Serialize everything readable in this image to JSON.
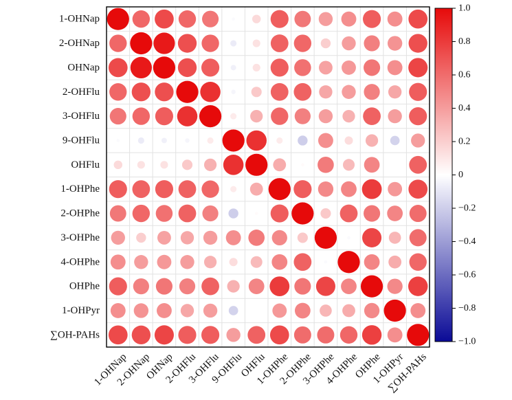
{
  "chart_data": {
    "type": "heatmap",
    "title": "",
    "xlabel": "",
    "ylabel": "",
    "variables": [
      "1-OHNap",
      "2-OHNap",
      "OHNap",
      "2-OHFlu",
      "3-OHFlu",
      "9-OHFlu",
      "OHFlu",
      "1-OHPhe",
      "2-OHPhe",
      "3-OHPhe",
      "4-OHPhe",
      "OHPhe",
      "1-OHPyr",
      "∑OH-PAHs"
    ],
    "matrix": [
      [
        1.0,
        0.62,
        0.74,
        0.62,
        0.56,
        -0.02,
        0.15,
        0.66,
        0.55,
        0.4,
        0.46,
        0.66,
        0.46,
        0.74
      ],
      [
        0.62,
        1.0,
        0.94,
        0.72,
        0.62,
        -0.08,
        0.12,
        0.64,
        0.62,
        0.2,
        0.4,
        0.52,
        0.44,
        0.72
      ],
      [
        0.74,
        0.94,
        1.0,
        0.72,
        0.66,
        -0.06,
        0.12,
        0.66,
        0.58,
        0.38,
        0.42,
        0.56,
        0.46,
        0.76
      ],
      [
        0.62,
        0.72,
        0.72,
        1.0,
        0.84,
        -0.04,
        0.22,
        0.64,
        0.64,
        0.36,
        0.4,
        0.52,
        0.36,
        0.66
      ],
      [
        0.56,
        0.62,
        0.66,
        0.84,
        1.0,
        0.08,
        0.32,
        0.62,
        0.52,
        0.4,
        0.32,
        0.64,
        0.4,
        0.66
      ],
      [
        -0.02,
        -0.08,
        -0.06,
        -0.04,
        0.08,
        1.0,
        0.84,
        0.08,
        -0.2,
        0.46,
        0.14,
        0.32,
        -0.18,
        0.4
      ],
      [
        0.15,
        0.12,
        0.12,
        0.22,
        0.32,
        0.84,
        1.0,
        0.34,
        0.02,
        0.54,
        0.28,
        0.5,
        0.0,
        0.64
      ],
      [
        0.66,
        0.64,
        0.66,
        0.64,
        0.62,
        0.08,
        0.34,
        1.0,
        0.66,
        0.48,
        0.5,
        0.8,
        0.42,
        0.74
      ],
      [
        0.55,
        0.62,
        0.58,
        0.64,
        0.52,
        -0.2,
        0.02,
        0.66,
        1.0,
        0.22,
        0.64,
        0.56,
        0.5,
        0.6
      ],
      [
        0.4,
        0.2,
        0.38,
        0.36,
        0.4,
        0.46,
        0.54,
        0.48,
        0.22,
        1.0,
        -0.02,
        0.76,
        0.3,
        0.6
      ],
      [
        0.46,
        0.4,
        0.42,
        0.4,
        0.32,
        0.14,
        0.28,
        0.5,
        0.64,
        -0.02,
        1.0,
        0.5,
        0.34,
        0.62
      ],
      [
        0.66,
        0.52,
        0.56,
        0.52,
        0.64,
        0.32,
        0.5,
        0.8,
        0.56,
        0.76,
        0.5,
        1.0,
        0.48,
        0.78
      ],
      [
        0.46,
        0.44,
        0.46,
        0.36,
        0.4,
        -0.18,
        0.0,
        0.42,
        0.5,
        0.3,
        0.34,
        0.48,
        1.0,
        0.46
      ],
      [
        0.74,
        0.72,
        0.76,
        0.66,
        0.66,
        0.4,
        0.64,
        0.74,
        0.6,
        0.6,
        0.62,
        0.78,
        0.46,
        1.0
      ]
    ],
    "color_range": [
      -1.0,
      1.0
    ],
    "colorbar_ticks": [
      1.0,
      0.8,
      0.6,
      0.4,
      0.2,
      0,
      -0.2,
      -0.4,
      -0.6,
      -0.8,
      -1.0
    ],
    "colorbar_tick_labels": [
      "1.0",
      "0.8",
      "0.6",
      "0.4",
      "0.2",
      "0",
      "−0.2",
      "−0.4",
      "−0.6",
      "−0.8",
      "−1.0"
    ],
    "colormap": {
      "negative_end": "#0a0a96",
      "middle": "#ffffff",
      "positive_end": "#e60a0a"
    },
    "marker": "circle",
    "grid": true,
    "legend": "colorbar-right"
  }
}
